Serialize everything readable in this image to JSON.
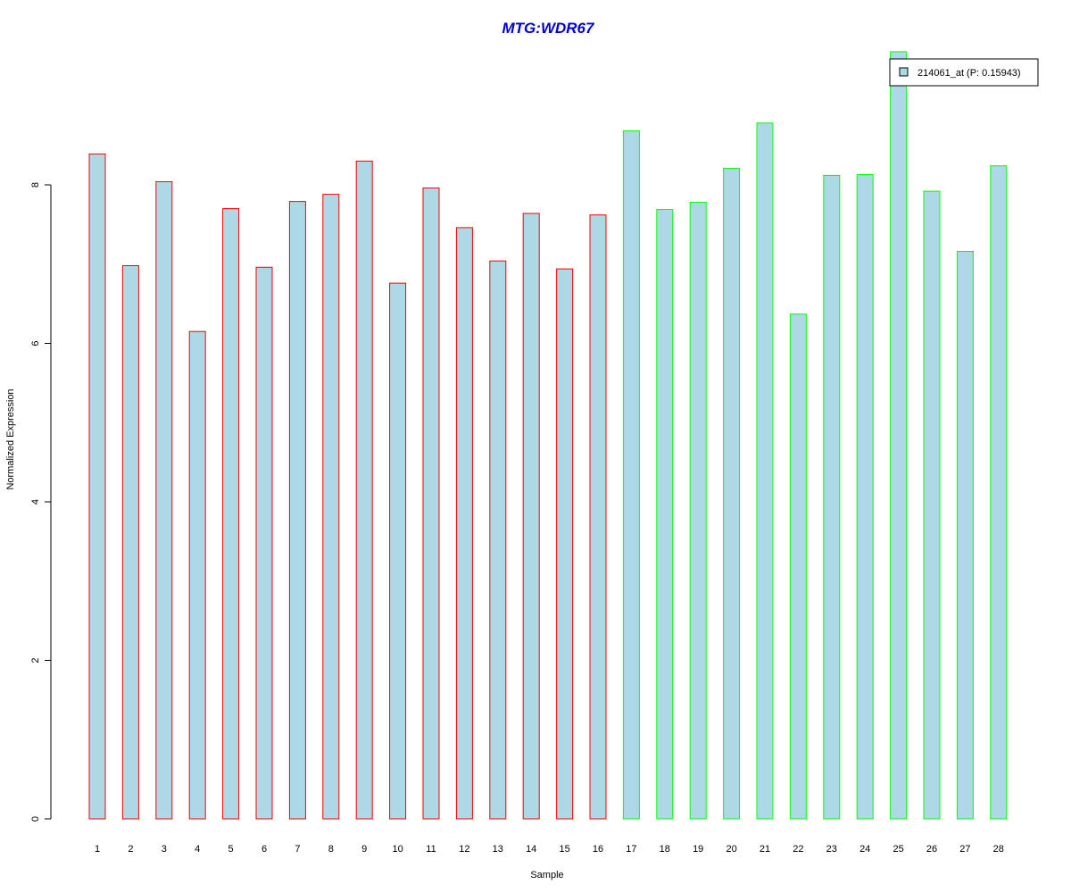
{
  "chart_data": {
    "type": "bar",
    "title": "MTG:WDR67",
    "xlabel": "Sample",
    "ylabel": "Normalized Expression",
    "categories": [
      "1",
      "2",
      "3",
      "4",
      "5",
      "6",
      "7",
      "8",
      "9",
      "10",
      "11",
      "12",
      "13",
      "14",
      "15",
      "16",
      "17",
      "18",
      "19",
      "20",
      "21",
      "22",
      "23",
      "24",
      "25",
      "26",
      "27",
      "28"
    ],
    "series": [
      {
        "name": "214061_at (P: 0.15943)",
        "values": [
          8.39,
          6.98,
          8.04,
          6.15,
          7.7,
          6.96,
          7.79,
          7.88,
          8.3,
          6.76,
          7.96,
          7.46,
          7.04,
          7.64,
          6.94,
          7.62,
          8.68,
          7.69,
          7.78,
          8.21,
          8.78,
          6.37,
          8.12,
          8.13,
          9.68,
          7.92,
          7.16,
          8.24
        ]
      }
    ],
    "group_of_sample": [
      1,
      1,
      1,
      1,
      1,
      1,
      1,
      1,
      1,
      1,
      1,
      1,
      1,
      1,
      1,
      1,
      2,
      2,
      2,
      2,
      2,
      2,
      2,
      2,
      2,
      2,
      2,
      2
    ],
    "yticks": [
      0,
      2,
      4,
      6,
      8
    ],
    "ylim": [
      0,
      9.68
    ],
    "legend_position": "top-right",
    "grid": false,
    "colors": {
      "bar_fill": "#add8e6",
      "group_1_border": "#ff0000",
      "group_2_border": "#00ff00",
      "title": "#0000cd",
      "axis": "#000000"
    }
  }
}
